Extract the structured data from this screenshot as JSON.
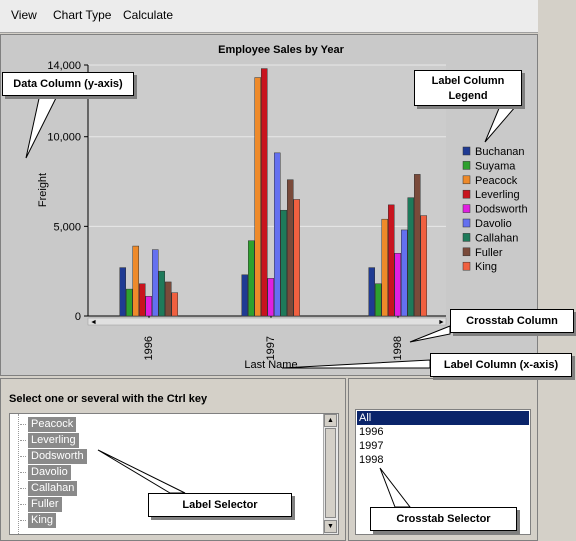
{
  "menu": {
    "view": "View",
    "chart_type": "Chart Type",
    "calculate": "Calculate"
  },
  "chart_data": {
    "type": "bar",
    "title": "Employee Sales by Year",
    "xlabel": "Last Name",
    "ylabel": "Freight",
    "ylim": [
      0,
      14000
    ],
    "yticks": [
      "0",
      "5,000",
      "10,000",
      "14,000"
    ],
    "ytick_values": [
      0,
      5000,
      10000,
      14000
    ],
    "categories": [
      "1996",
      "1997",
      "1998"
    ],
    "legend_position": "right",
    "series": [
      {
        "name": "Buchanan",
        "color": "#1f3a93",
        "values": [
          2700,
          2300,
          2700
        ]
      },
      {
        "name": "Suyama",
        "color": "#2ea02e",
        "values": [
          1500,
          4200,
          1800
        ]
      },
      {
        "name": "Peacock",
        "color": "#ee8a2a",
        "values": [
          3900,
          13300,
          5400
        ]
      },
      {
        "name": "Leverling",
        "color": "#c8141e",
        "values": [
          1800,
          13800,
          6200
        ]
      },
      {
        "name": "Dodsworth",
        "color": "#e020e0",
        "values": [
          1100,
          2100,
          3500
        ]
      },
      {
        "name": "Davolio",
        "color": "#6470f0",
        "values": [
          3700,
          9100,
          4800
        ]
      },
      {
        "name": "Callahan",
        "color": "#1e7a5a",
        "values": [
          2500,
          5900,
          6600
        ]
      },
      {
        "name": "Fuller",
        "color": "#7a4a3a",
        "values": [
          1900,
          7600,
          7900
        ]
      },
      {
        "name": "King",
        "color": "#f06040",
        "values": [
          1300,
          6500,
          5600
        ]
      }
    ]
  },
  "callouts": {
    "data_column": "Data Column (y-axis)",
    "legend_line1": "Label Column",
    "legend_line2": "Legend",
    "crosstab_column": "Crosstab Column",
    "label_column_x": "Label Column (x-axis)",
    "label_selector": "Label Selector",
    "crosstab_selector": "Crosstab Selector"
  },
  "label_selector": {
    "prompt": "Select one or several with the Ctrl key",
    "items": [
      "Peacock",
      "Leverling",
      "Dodsworth",
      "Davolio",
      "Callahan",
      "Fuller",
      "King"
    ]
  },
  "crosstab_selector": {
    "items": [
      "All",
      "1996",
      "1997",
      "1998"
    ],
    "selected": "All"
  }
}
